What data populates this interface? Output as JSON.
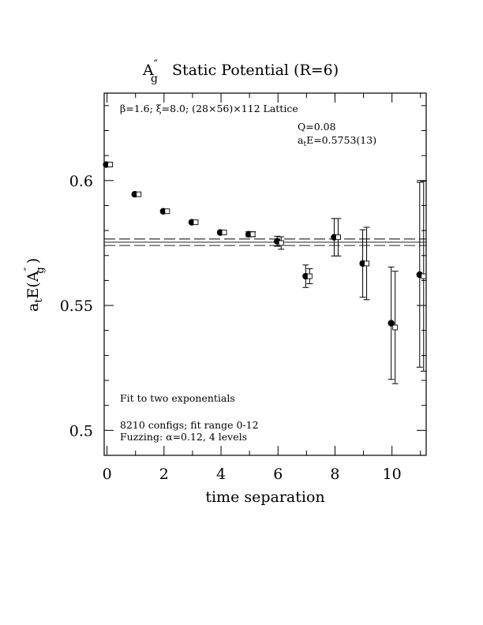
{
  "chart_data": {
    "type": "scatter",
    "title_main": "A",
    "title_sub": "g",
    "title_sup": "″",
    "title_rest": "Static Potential (R=6)",
    "xlabel": "time separation",
    "ylabel_prefix": "a",
    "ylabel_prefix_sub": "t",
    "ylabel_mid": "E(A",
    "ylabel_sub": "g",
    "ylabel_sup": "″",
    "ylabel_end": ")",
    "xlim": [
      -0.1,
      11.2
    ],
    "ylim": [
      0.49,
      0.635
    ],
    "x_ticks": [
      0,
      2,
      4,
      6,
      8,
      10
    ],
    "x_tick_labels": [
      "0",
      "2",
      "4",
      "6",
      "8",
      "10"
    ],
    "y_ticks": [
      0.5,
      0.55,
      0.6
    ],
    "y_tick_labels": [
      "0.5",
      "0.55",
      "0.6"
    ],
    "lattice_label": "β=1.6; ξ=8.0; (28×56)×112 Lattice",
    "q_label": "Q=0.08",
    "energy_label": "a_tE=0.5753(13)",
    "energy_prefix": "a",
    "energy_prefix_sub": "t",
    "energy_rest": "E=0.5753(13)",
    "fit_note": "Fit to two exponentials",
    "configs_note": "8210 configs; fit range 0-12",
    "fuzzing_note": "Fuzzing: α=0.12, 4 levels",
    "fit_value": 0.5753,
    "fit_error": 0.0013,
    "series": [
      {
        "marker": "filled-circle",
        "points": [
          {
            "x": 0,
            "y": 0.6064,
            "err": 0
          },
          {
            "x": 1,
            "y": 0.5945,
            "err": 0
          },
          {
            "x": 2,
            "y": 0.5877,
            "err": 0
          },
          {
            "x": 3,
            "y": 0.5833,
            "err": 0
          },
          {
            "x": 4,
            "y": 0.5792,
            "err": 0
          },
          {
            "x": 5,
            "y": 0.5785,
            "err": 0.001
          },
          {
            "x": 6,
            "y": 0.5757,
            "err": 0.002
          },
          {
            "x": 7,
            "y": 0.5617,
            "err": 0.0045
          },
          {
            "x": 8,
            "y": 0.5773,
            "err": 0.0075
          },
          {
            "x": 9,
            "y": 0.5668,
            "err": 0.0135
          },
          {
            "x": 10,
            "y": 0.5429,
            "err": 0.0225
          },
          {
            "x": 11,
            "y": 0.5623,
            "err": 0.037
          }
        ]
      },
      {
        "marker": "open-square",
        "points": [
          {
            "x": 0,
            "y": 0.6064,
            "err": 0
          },
          {
            "x": 1,
            "y": 0.5945,
            "err": 0
          },
          {
            "x": 2,
            "y": 0.5877,
            "err": 0
          },
          {
            "x": 3,
            "y": 0.5833,
            "err": 0
          },
          {
            "x": 4,
            "y": 0.5792,
            "err": 0
          },
          {
            "x": 5,
            "y": 0.5785,
            "err": 0.001
          },
          {
            "x": 6,
            "y": 0.575,
            "err": 0.0025
          },
          {
            "x": 7,
            "y": 0.5617,
            "err": 0.003
          },
          {
            "x": 8,
            "y": 0.5773,
            "err": 0.0075
          },
          {
            "x": 9,
            "y": 0.5668,
            "err": 0.0145
          },
          {
            "x": 10,
            "y": 0.5412,
            "err": 0.0225
          },
          {
            "x": 11,
            "y": 0.5617,
            "err": 0.038
          }
        ]
      }
    ]
  }
}
